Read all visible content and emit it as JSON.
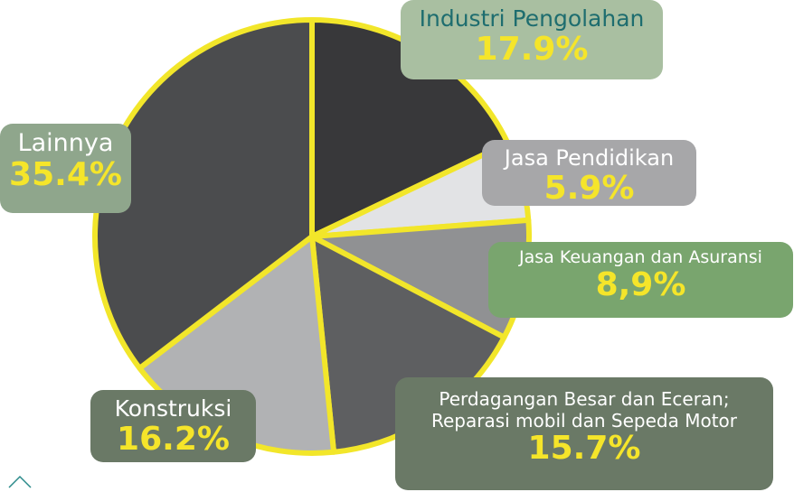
{
  "chart_data": {
    "type": "pie",
    "categories": [
      "Industri Pengolahan",
      "Jasa Pendidikan",
      "Jasa Keuangan dan Asuransi",
      "Perdagangan Besar dan Eceran;\nReparasi mobil dan Sepeda Motor",
      "Konstruksi",
      "Lainnya"
    ],
    "values": [
      17.9,
      5.9,
      8.9,
      15.7,
      16.2,
      35.4
    ],
    "value_labels": [
      "17.9%",
      "5.9%",
      "8,9%",
      "15.7%",
      "16.2%",
      "35.4%"
    ],
    "colors": [
      "#38383a",
      "#e2e3e5",
      "#909193",
      "#5e5f61",
      "#b1b2b4",
      "#4b4c4e"
    ],
    "edge_color": "#f2e62a"
  }
}
